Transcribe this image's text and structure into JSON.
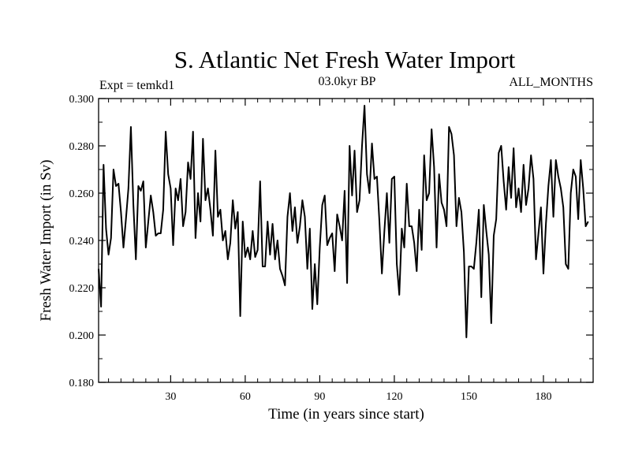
{
  "chart_data": {
    "type": "line",
    "title": "S. Atlantic Net Fresh Water Import",
    "subtitle_left": "Expt = temkd1",
    "subtitle_center": "03.0kyr BP",
    "subtitle_right": "ALL_MONTHS",
    "xlabel": "Time (in years since start)",
    "ylabel": "Fresh Water Import (in Sv)",
    "xlim": [
      1,
      200
    ],
    "ylim": [
      0.18,
      0.3
    ],
    "xticks": [
      30,
      60,
      90,
      120,
      150,
      180
    ],
    "xtick_labels": [
      "30",
      "60",
      "90",
      "120",
      "150",
      "180"
    ],
    "yticks": [
      0.18,
      0.2,
      0.22,
      0.24,
      0.26,
      0.28,
      0.3
    ],
    "ytick_labels": [
      "0.180",
      "0.200",
      "0.220",
      "0.240",
      "0.260",
      "0.280",
      "0.300"
    ],
    "grid": false,
    "series": [
      {
        "name": "Fresh Water Import",
        "color": "#000000",
        "values": [
          0.228,
          0.212,
          0.272,
          0.245,
          0.234,
          0.241,
          0.27,
          0.263,
          0.264,
          0.252,
          0.237,
          0.249,
          0.262,
          0.288,
          0.255,
          0.232,
          0.263,
          0.261,
          0.265,
          0.237,
          0.248,
          0.259,
          0.252,
          0.242,
          0.243,
          0.243,
          0.253,
          0.286,
          0.268,
          0.262,
          0.238,
          0.262,
          0.257,
          0.266,
          0.246,
          0.252,
          0.273,
          0.266,
          0.286,
          0.241,
          0.26,
          0.248,
          0.283,
          0.257,
          0.262,
          0.253,
          0.242,
          0.278,
          0.25,
          0.253,
          0.24,
          0.244,
          0.232,
          0.239,
          0.257,
          0.245,
          0.252,
          0.208,
          0.248,
          0.233,
          0.237,
          0.232,
          0.244,
          0.233,
          0.236,
          0.265,
          0.229,
          0.229,
          0.248,
          0.234,
          0.247,
          0.232,
          0.24,
          0.228,
          0.225,
          0.221,
          0.25,
          0.26,
          0.244,
          0.254,
          0.239,
          0.246,
          0.257,
          0.25,
          0.228,
          0.245,
          0.211,
          0.23,
          0.213,
          0.237,
          0.255,
          0.259,
          0.238,
          0.241,
          0.243,
          0.227,
          0.251,
          0.246,
          0.24,
          0.261,
          0.222,
          0.28,
          0.259,
          0.278,
          0.252,
          0.257,
          0.28,
          0.297,
          0.268,
          0.26,
          0.281,
          0.266,
          0.267,
          0.248,
          0.226,
          0.244,
          0.26,
          0.239,
          0.266,
          0.267,
          0.23,
          0.217,
          0.245,
          0.237,
          0.264,
          0.246,
          0.246,
          0.239,
          0.227,
          0.253,
          0.236,
          0.276,
          0.257,
          0.26,
          0.287,
          0.271,
          0.237,
          0.268,
          0.256,
          0.253,
          0.246,
          0.288,
          0.285,
          0.276,
          0.246,
          0.258,
          0.252,
          0.235,
          0.199,
          0.229,
          0.229,
          0.228,
          0.239,
          0.253,
          0.216,
          0.255,
          0.244,
          0.234,
          0.205,
          0.242,
          0.249,
          0.277,
          0.28,
          0.265,
          0.253,
          0.271,
          0.258,
          0.279,
          0.254,
          0.262,
          0.252,
          0.272,
          0.255,
          0.262,
          0.276,
          0.266,
          0.232,
          0.243,
          0.254,
          0.226,
          0.247,
          0.263,
          0.274,
          0.25,
          0.274,
          0.267,
          0.262,
          0.254,
          0.23,
          0.228,
          0.26,
          0.27,
          0.267,
          0.249,
          0.274,
          0.262,
          0.246,
          0.248
        ]
      }
    ]
  }
}
